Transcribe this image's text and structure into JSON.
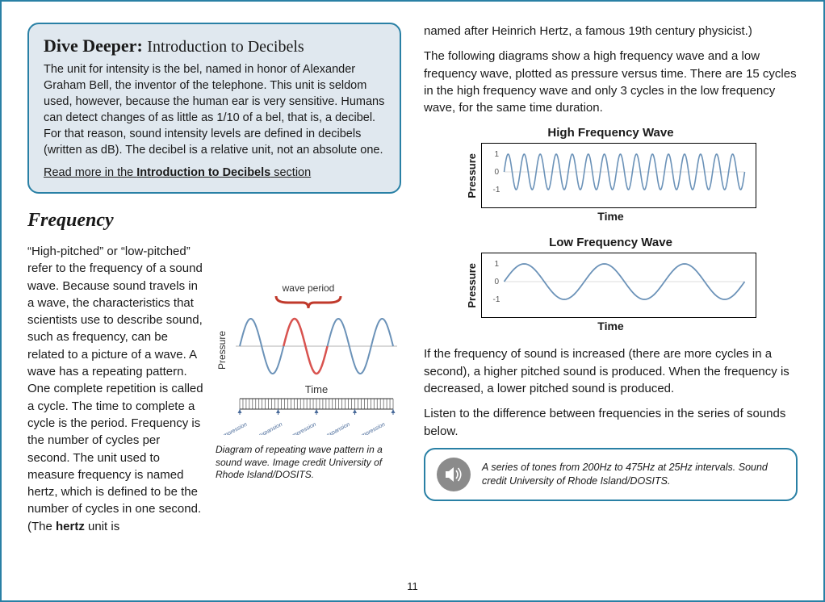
{
  "page_number": "11",
  "callout": {
    "title_bold": "Dive Deeper:",
    "title_light": "Introduction to Decibels",
    "body": "The unit for intensity is the bel, named in honor of Alexander Graham Bell, the inventor of the telephone. This unit is seldom used, however, because the human ear is very sensitive. Humans can detect changes of as little as 1/10 of a bel, that is, a decibel. For that reason, sound intensity levels are defined in decibels (written as dB). The decibel is a relative unit, not an absolute one.",
    "link_pre": "Read more in the ",
    "link_bold": "Introduction to Decibels",
    "link_post": " section"
  },
  "section_heading": "Frequency",
  "left_para_1": "“High-pitched” or “low-pitched” refer to the frequency of a sound wave. Because sound travels in a wave, the characteristics that scientists use to describe sound, such as frequency, can be related to a picture of a wave. A wave has a repeating pattern. One complete repetition is called a cycle. The time to complete a cycle is the period. Frequency is the number of cycles per second.  The unit used to measure frequency is named hertz, which is defined to be the number of cycles in one second. (The ",
  "left_para_1_bold": "hertz",
  "left_para_1_tail": " unit is",
  "wave_period_fig": {
    "top_label": "wave period",
    "y_label": "Pressure",
    "x_label": "Time",
    "tick_labels": [
      "compression",
      "expansion",
      "compression",
      "expansion",
      "compression"
    ],
    "caption": "Diagram of repeating wave pattern in a sound wave. Image credit University of Rhode Island/DOSITS.",
    "wave_color_main": "#6b92b8",
    "wave_color_highlight": "#d9534f",
    "n_cycles": 3.5
  },
  "right_para_1": "named after Heinrich Hertz, a famous 19th century physicist.)",
  "right_para_2": "The following diagrams show a high frequency wave and a low frequency wave, plotted as pressure versus time. There are 15 cycles in the high frequency wave and only 3 cycles in the low frequency wave, for the same time duration.",
  "high_freq_chart": {
    "title": "High Frequency Wave",
    "y_label": "Pressure",
    "x_label": "Time",
    "y_ticks": [
      "1",
      "0",
      "-1"
    ],
    "color": "#6b92b8",
    "n_cycles": 15
  },
  "low_freq_chart": {
    "title": "Low Frequency Wave",
    "y_label": "Pressure",
    "x_label": "Time",
    "y_ticks": [
      "1",
      "0",
      "-1"
    ],
    "color": "#6b92b8",
    "n_cycles": 3
  },
  "right_para_3": "If the frequency of sound is increased (there are more cycles in a second), a higher pitched sound is produced. When the frequency is decreased, a lower pitched sound is produced.",
  "right_para_4": "Listen to the difference between frequencies in the series of sounds below.",
  "audio_callout": {
    "caption": "A series of tones from 200Hz to 475Hz at 25Hz intervals. Sound credit University of Rhode Island/DOSITS."
  },
  "colors": {
    "border": "#2980a5",
    "callout_bg": "#e0e8ef"
  }
}
